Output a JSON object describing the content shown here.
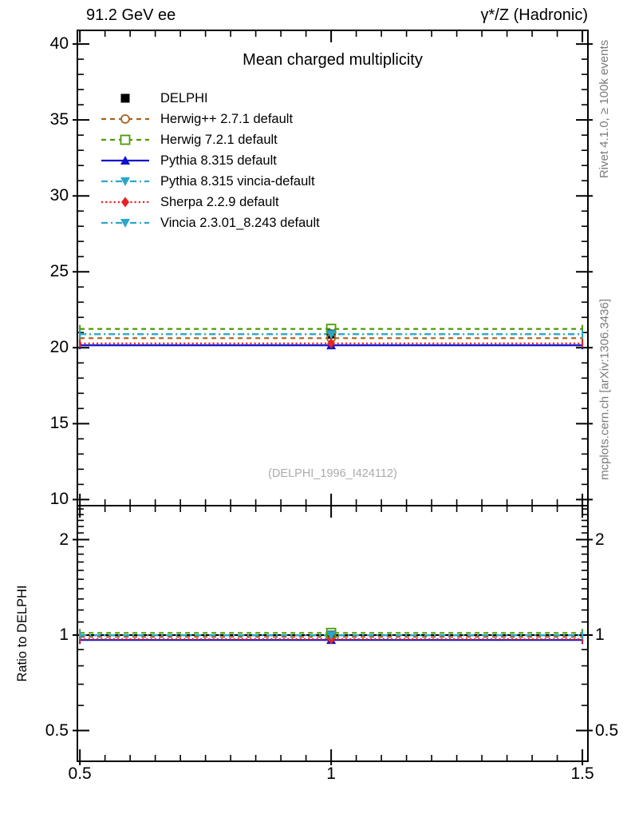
{
  "header": {
    "left": "91.2 GeV ee",
    "right": "γ*/Z (Hadronic)"
  },
  "side_labels": {
    "rivet": "Rivet 4.1.0, ≥ 100k events",
    "mcplots": "mcplots.cern.ch [arXiv:1306.3436]"
  },
  "watermark": "(DELPHI_1996_I424112)",
  "chart_data": {
    "type": "line",
    "title": "Mean charged multiplicity",
    "ratio_ylabel": "Ratio to DELPHI",
    "legend_position": "top-left-inside",
    "grid": false,
    "x": {
      "lim": [
        0.495,
        1.511
      ],
      "ticks": [
        0.5,
        1,
        1.5
      ],
      "tick_labels": [
        "0.5",
        "1",
        "1.5"
      ],
      "minor_step": 0.05,
      "point": 1.0,
      "bin": [
        0.5,
        1.5
      ]
    },
    "main_y": {
      "scale": "linear",
      "lim": [
        9.6,
        40.9
      ],
      "ticks": [
        10,
        15,
        20,
        25,
        30,
        35,
        40
      ],
      "tick_labels": [
        "10",
        "15",
        "20",
        "25",
        "30",
        "35",
        "40"
      ],
      "minor_step": 1
    },
    "ratio_y": {
      "scale": "log",
      "lim": [
        0.4,
        2.56
      ],
      "ticks": [
        0.5,
        1,
        2
      ],
      "tick_labels": [
        "0.5",
        "1",
        "2"
      ],
      "minor_ticks": [
        0.6,
        0.7,
        0.8,
        0.9,
        1.1,
        1.2,
        1.3,
        1.4,
        1.5,
        1.6,
        1.7,
        1.8,
        1.9,
        2.1,
        2.2,
        2.3,
        2.4,
        2.5
      ]
    },
    "series": [
      {
        "name": "DELPHI",
        "kind": "data",
        "color": "#000000",
        "line": "none",
        "marker": "square-filled",
        "value": 20.9,
        "value_err": 0.3,
        "ratio": 1.0
      },
      {
        "name": "Herwig++ 2.7.1 default",
        "kind": "mc",
        "color": "#a8611a",
        "line": "dashed",
        "marker": "circle-open",
        "value": 20.63,
        "ratio": 0.987
      },
      {
        "name": "Herwig 7.2.1 default",
        "kind": "mc",
        "color": "#4e9a06",
        "line": "dashed",
        "marker": "square-open",
        "value": 21.24,
        "ratio": 1.016
      },
      {
        "name": "Pythia 8.315 default",
        "kind": "mc",
        "color": "#1111cc",
        "line": "solid",
        "marker": "triangle-up-filled",
        "value": 20.16,
        "ratio": 0.965
      },
      {
        "name": "Pythia 8.315 vincia-default",
        "kind": "mc",
        "color": "#2ba6cb",
        "line": "dashdot",
        "marker": "triangle-down-filled",
        "value": 20.89,
        "ratio": 0.999
      },
      {
        "name": "Sherpa 2.2.9 default",
        "kind": "mc",
        "color": "#e62420",
        "line": "dotted",
        "marker": "diamond-filled",
        "value": 20.29,
        "ratio": 0.971
      },
      {
        "name": "Vincia 2.3.01_8.243 default",
        "kind": "mc",
        "color": "#2ba6cb",
        "line": "dashdot",
        "marker": "triangle-down-filled",
        "value": 20.89,
        "ratio": 0.999
      }
    ]
  }
}
